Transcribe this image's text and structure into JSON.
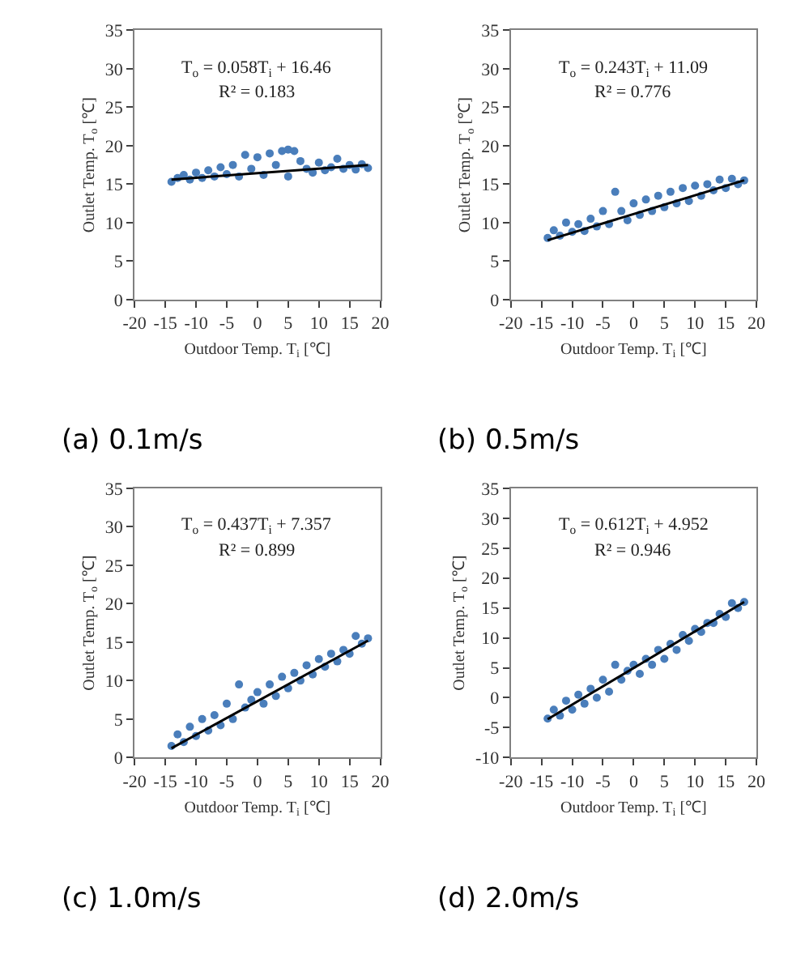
{
  "chart_data": [
    {
      "type": "scatter",
      "title": "(a) 0.1m/s",
      "xlabel": "Outdoor Temp. T$_{i}$ [℃]",
      "ylabel": "Outlet Temp. T$_{o}$ [℃]",
      "annotations": [
        "T$_{o}$ = 0.058T$_{i}$ + 16.46",
        "R² = 0.183"
      ],
      "xlim": [
        -20,
        20
      ],
      "xticks": [
        -20,
        -15,
        -10,
        -5,
        0,
        5,
        10,
        15,
        20
      ],
      "ylim": [
        0,
        35
      ],
      "yticks": [
        0,
        5,
        10,
        15,
        20,
        25,
        30,
        35
      ],
      "grid": false,
      "series": [
        {
          "marker": "circle",
          "color": "#4a7ebb",
          "x": [
            -14,
            -13,
            -12,
            -11,
            -10,
            -9,
            -8,
            -7,
            -6,
            -5,
            -4,
            -3,
            -2,
            -1,
            0,
            1,
            2,
            3,
            4,
            5,
            5,
            6,
            7,
            8,
            9,
            10,
            11,
            12,
            13,
            14,
            15,
            16,
            17,
            18
          ],
          "values": [
            15.3,
            15.8,
            16.2,
            15.6,
            16.5,
            15.8,
            16.8,
            16.0,
            17.2,
            16.3,
            17.5,
            16.0,
            18.8,
            17.0,
            18.5,
            16.2,
            19.0,
            17.5,
            19.3,
            19.5,
            16.0,
            19.3,
            18.0,
            17.0,
            16.5,
            17.8,
            16.8,
            17.2,
            18.3,
            17.0,
            17.5,
            16.9,
            17.6,
            17.1
          ]
        },
        {
          "type": "line",
          "color": "#000000",
          "x": [
            -14,
            18
          ],
          "values": [
            15.6,
            17.5
          ]
        }
      ]
    },
    {
      "type": "scatter",
      "title": "(b) 0.5m/s",
      "xlabel": "Outdoor Temp. T$_{i}$ [℃]",
      "ylabel": "Outlet Temp. T$_{o}$ [℃]",
      "annotations": [
        "T$_{o}$ = 0.243T$_{i}$ + 11.09",
        "R² = 0.776"
      ],
      "xlim": [
        -20,
        20
      ],
      "xticks": [
        -20,
        -15,
        -10,
        -5,
        0,
        5,
        10,
        15,
        20
      ],
      "ylim": [
        0,
        35
      ],
      "yticks": [
        0,
        5,
        10,
        15,
        20,
        25,
        30,
        35
      ],
      "grid": false,
      "series": [
        {
          "marker": "circle",
          "color": "#4a7ebb",
          "x": [
            -14,
            -13,
            -12,
            -11,
            -10,
            -9,
            -8,
            -7,
            -6,
            -5,
            -4,
            -3,
            -2,
            -1,
            0,
            1,
            2,
            3,
            4,
            5,
            6,
            7,
            8,
            9,
            10,
            11,
            12,
            13,
            14,
            15,
            16,
            17,
            18
          ],
          "values": [
            8.0,
            9.0,
            8.3,
            10.0,
            8.8,
            9.8,
            8.9,
            10.5,
            9.5,
            11.5,
            9.8,
            14.0,
            11.5,
            10.3,
            12.5,
            11.0,
            13.0,
            11.5,
            13.5,
            12.0,
            14.0,
            12.5,
            14.5,
            12.8,
            14.8,
            13.5,
            15.0,
            14.2,
            15.6,
            14.5,
            15.7,
            15.0,
            15.5
          ]
        },
        {
          "type": "line",
          "color": "#000000",
          "x": [
            -14,
            18
          ],
          "values": [
            7.7,
            15.5
          ]
        }
      ]
    },
    {
      "type": "scatter",
      "title": "(c) 1.0m/s",
      "xlabel": "Outdoor Temp. T$_{i}$ [℃]",
      "ylabel": "Outlet Temp. T$_{o}$ [℃]",
      "annotations": [
        "T$_{o}$ = 0.437T$_{i}$ + 7.357",
        "R² = 0.899"
      ],
      "xlim": [
        -20,
        20
      ],
      "xticks": [
        -20,
        -15,
        -10,
        -5,
        0,
        5,
        10,
        15,
        20
      ],
      "ylim": [
        0,
        35
      ],
      "yticks": [
        0,
        5,
        10,
        15,
        20,
        25,
        30,
        35
      ],
      "grid": false,
      "series": [
        {
          "marker": "circle",
          "color": "#4a7ebb",
          "x": [
            -14,
            -13,
            -12,
            -11,
            -10,
            -9,
            -8,
            -7,
            -6,
            -5,
            -4,
            -3,
            -2,
            -1,
            0,
            1,
            2,
            3,
            4,
            5,
            6,
            7,
            8,
            9,
            10,
            11,
            12,
            13,
            14,
            15,
            16,
            17,
            18
          ],
          "values": [
            1.5,
            3.0,
            2.0,
            4.0,
            2.8,
            5.0,
            3.5,
            5.5,
            4.2,
            7.0,
            5.0,
            9.5,
            6.5,
            7.5,
            8.5,
            7.0,
            9.5,
            8.0,
            10.5,
            9.0,
            11.0,
            10.0,
            12.0,
            10.8,
            12.8,
            11.8,
            13.5,
            12.5,
            14.0,
            13.5,
            15.8,
            14.8,
            15.5
          ]
        },
        {
          "type": "line",
          "color": "#000000",
          "x": [
            -14,
            18
          ],
          "values": [
            1.2,
            15.2
          ]
        }
      ]
    },
    {
      "type": "scatter",
      "title": "(d) 2.0m/s",
      "xlabel": "Outdoor Temp. T$_{i}$ [℃]",
      "ylabel": "Outlet Temp. T$_{o}$ [℃]",
      "annotations": [
        "T$_{o}$ = 0.612T$_{i}$ + 4.952",
        "R² = 0.946"
      ],
      "xlim": [
        -20,
        20
      ],
      "xticks": [
        -20,
        -15,
        -10,
        -5,
        0,
        5,
        10,
        15,
        20
      ],
      "ylim": [
        -10,
        35
      ],
      "yticks": [
        -10,
        -5,
        0,
        5,
        10,
        15,
        20,
        25,
        30,
        35
      ],
      "grid": false,
      "series": [
        {
          "marker": "circle",
          "color": "#4a7ebb",
          "x": [
            -14,
            -13,
            -12,
            -11,
            -10,
            -9,
            -8,
            -7,
            -6,
            -5,
            -4,
            -3,
            -2,
            -1,
            0,
            1,
            2,
            3,
            4,
            5,
            6,
            7,
            8,
            9,
            10,
            11,
            12,
            13,
            14,
            15,
            16,
            17,
            18
          ],
          "values": [
            -3.5,
            -2.0,
            -3.0,
            -0.5,
            -2.0,
            0.5,
            -1.0,
            1.5,
            0.0,
            3.0,
            1.0,
            5.5,
            3.0,
            4.5,
            5.5,
            4.0,
            6.5,
            5.5,
            8.0,
            6.5,
            9.0,
            8.0,
            10.5,
            9.5,
            11.5,
            11.0,
            12.5,
            12.5,
            14.0,
            13.5,
            15.8,
            15.0,
            16.0
          ]
        },
        {
          "type": "line",
          "color": "#000000",
          "x": [
            -14,
            18
          ],
          "values": [
            -3.6,
            16.0
          ]
        }
      ]
    }
  ]
}
